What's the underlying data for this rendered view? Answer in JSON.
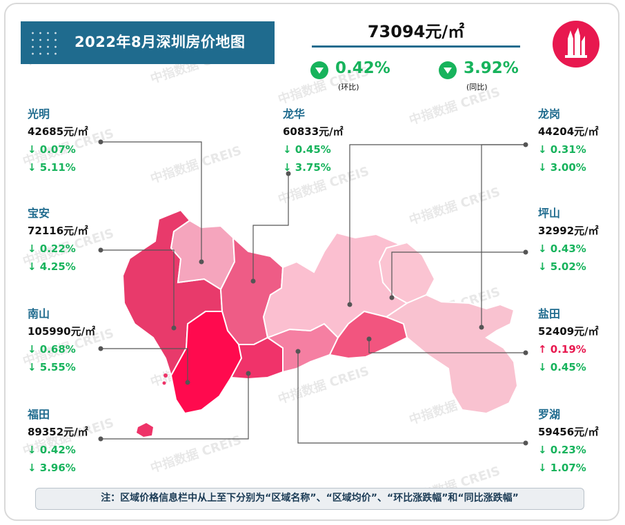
{
  "title": "2022年8月深圳房价地图",
  "city_average": "73094元/㎡",
  "mom": {
    "value": "0.42%",
    "label": "(环比)"
  },
  "yoy": {
    "value": "3.92%",
    "label": "(同比)"
  },
  "watermark": "中指数据 CREIS",
  "colors": {
    "title_bg": "#1f6b8e",
    "down": "#17b35c",
    "up": "#e8184f",
    "name": "#1f6b8e"
  },
  "districts": {
    "guangming": {
      "name": "光明",
      "price": "42685元/㎡",
      "mom": "↓ 0.07%",
      "yoy": "↓ 5.11%"
    },
    "baoan": {
      "name": "宝安",
      "price": "72116元/㎡",
      "mom": "↓ 0.22%",
      "yoy": "↓ 4.25%"
    },
    "nanshan": {
      "name": "南山",
      "price": "105990元/㎡",
      "mom": "↓ 0.68%",
      "yoy": "↓ 5.55%"
    },
    "futian": {
      "name": "福田",
      "price": "89352元/㎡",
      "mom": "↓ 0.42%",
      "yoy": "↓ 3.96%"
    },
    "longhua": {
      "name": "龙华",
      "price": "60833元/㎡",
      "mom": "↓ 0.45%",
      "yoy": "↓ 3.75%"
    },
    "longgang": {
      "name": "龙岗",
      "price": "44204元/㎡",
      "mom": "↓ 0.31%",
      "yoy": "↓ 3.00%"
    },
    "pingshan": {
      "name": "坪山",
      "price": "32992元/㎡",
      "mom": "↓ 0.43%",
      "yoy": "↓ 5.02%"
    },
    "yantian": {
      "name": "盐田",
      "price": "52409元/㎡",
      "mom": "↑ 0.19%",
      "yoy": "↓ 0.45%"
    },
    "luohu": {
      "name": "罗湖",
      "price": "59456元/㎡",
      "mom": "↓ 0.23%",
      "yoy": "↓ 1.07%"
    }
  },
  "note": "注：区域价格信息栏中从上至下分别为“区域名称”、“区域均价”、“环比涨跌幅”和“同比涨跌幅”"
}
